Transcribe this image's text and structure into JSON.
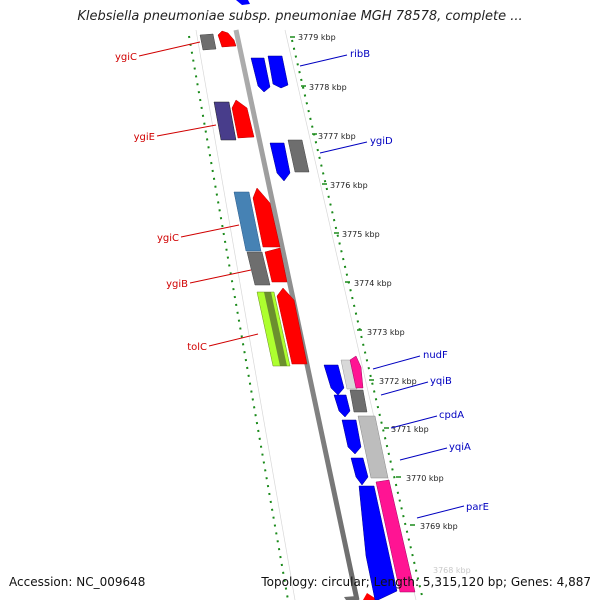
{
  "title": "Klebsiella pneumoniae subsp. pneumoniae MGH 78578, complete ...",
  "accession": "Accession: NC_009648",
  "summary": "Topology: circular; Length: 5,315,120 bp; Genes: 4,887",
  "ticks": [
    "3779 kbp",
    "3778 kbp",
    "3777 kbp",
    "3776 kbp",
    "3775 kbp",
    "3774 kbp",
    "3773 kbp",
    "3772 kbp",
    "3771 kbp",
    "3770 kbp",
    "3769 kbp"
  ],
  "left_genes": [
    {
      "name": "ygiC",
      "color": "#d00000"
    },
    {
      "name": "ygiE",
      "color": "#d00000"
    },
    {
      "name": "ygiC",
      "color": "#d00000"
    },
    {
      "name": "ygiB",
      "color": "#d00000"
    },
    {
      "name": "tolC",
      "color": "#d00000"
    }
  ],
  "right_genes": [
    {
      "name": "ribB",
      "color": "#0000c0"
    },
    {
      "name": "ygiD",
      "color": "#0000c0"
    },
    {
      "name": "nudF",
      "color": "#0000c0"
    },
    {
      "name": "yqiB",
      "color": "#0000c0"
    },
    {
      "name": "cpdA",
      "color": "#0000c0"
    },
    {
      "name": "yqiA",
      "color": "#0000c0"
    },
    {
      "name": "parE",
      "color": "#0000c0"
    }
  ],
  "colors": {
    "backbone": "#8c8c8c",
    "track_dots": "#1a8a1a",
    "forward_cds": "#ff0000",
    "reverse_cds": "#0000ff",
    "feature_gray": "#6e6e6e",
    "feature_light_gray": "#bdbdbd",
    "feature_pink": "#ff1493",
    "feature_steelblue": "#4682b4",
    "feature_purple": "#483d8b",
    "feature_lime": "#adff2f"
  }
}
